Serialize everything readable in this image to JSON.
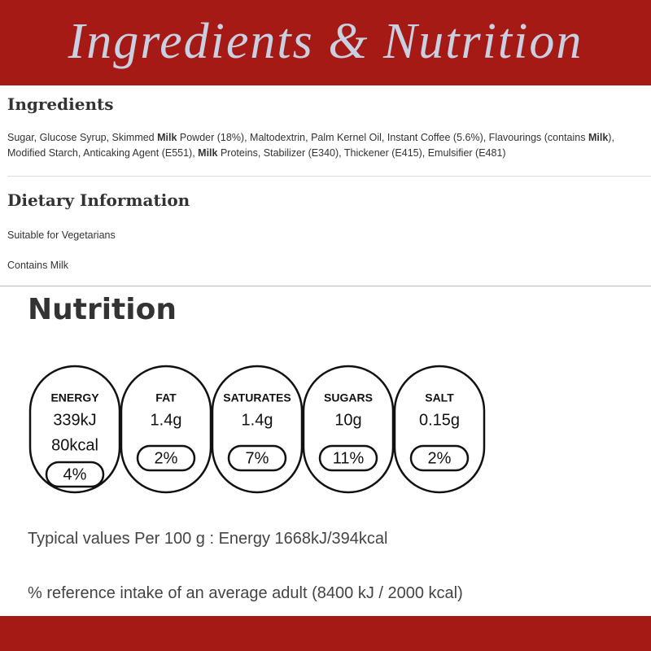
{
  "header": {
    "title": "Ingredients & Nutrition"
  },
  "ingredients": {
    "heading": "Ingredients",
    "segments": [
      {
        "text": "Sugar, Glucose Syrup, Skimmed "
      },
      {
        "text": "Milk",
        "bold": true
      },
      {
        "text": " Powder (18%), Maltodextrin, Palm Kernel Oil, Instant Coffee (5.6%), Flavourings (contains "
      },
      {
        "text": "Milk",
        "bold": true
      },
      {
        "text": "), Modified Starch, Anticaking Agent (E551), "
      },
      {
        "text": "Milk",
        "bold": true
      },
      {
        "text": " Proteins, Stabilizer (E340), Thickener (E415), Emulsifier (E481)"
      }
    ]
  },
  "dietary": {
    "heading": "Dietary Information",
    "items": [
      "Suitable for Vegetarians",
      "Contains Milk"
    ]
  },
  "nutrition": {
    "heading": "Nutrition",
    "badges": [
      {
        "label": "ENERGY",
        "amounts": [
          "339kJ",
          "80kcal"
        ],
        "percent": "4%"
      },
      {
        "label": "FAT",
        "amounts": [
          "1.4g"
        ],
        "percent": "2%"
      },
      {
        "label": "SATURATES",
        "amounts": [
          "1.4g"
        ],
        "percent": "7%"
      },
      {
        "label": "SUGARS",
        "amounts": [
          "10g"
        ],
        "percent": "11%"
      },
      {
        "label": "SALT",
        "amounts": [
          "0.15g"
        ],
        "percent": "2%"
      }
    ],
    "notes": [
      "Typical values Per 100 g : Energy 1668kJ/394kcal",
      "% reference intake of an average adult (8400 kJ / 2000 kcal)"
    ]
  }
}
